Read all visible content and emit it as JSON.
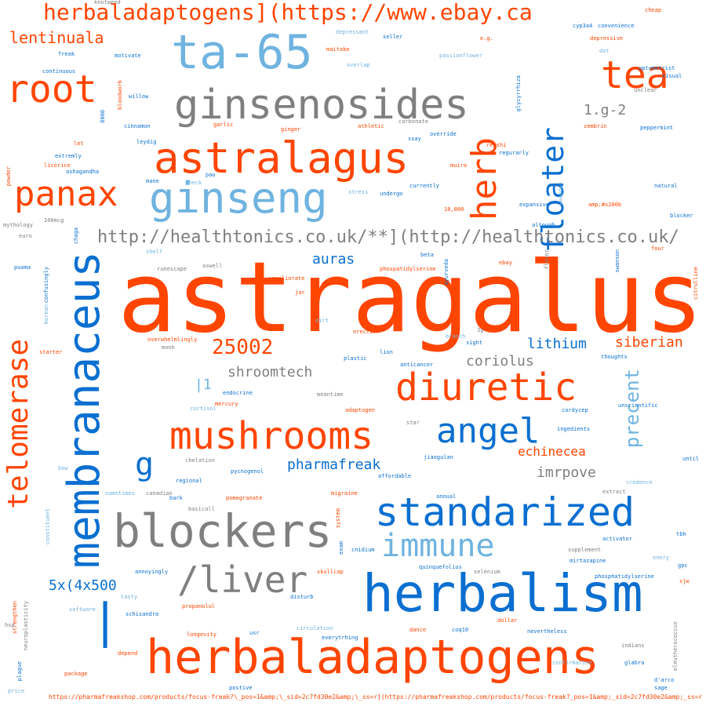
{
  "palette": {
    "orange": "#ff4500",
    "blue": "#0a6fd0",
    "lightblue": "#6fb3e0",
    "gray": "#7f7f7f"
  },
  "words": [
    {
      "text": "astragalus",
      "color": "orange"
    },
    {
      "text": "herbaladaptogens",
      "color": "orange"
    },
    {
      "text": "herbalism",
      "color": "blue"
    },
    {
      "text": "membranaceus",
      "color": "blue"
    },
    {
      "text": "ta-65",
      "color": "lightblue"
    },
    {
      "text": "ginsenosides",
      "color": "gray"
    },
    {
      "text": "root",
      "color": "orange"
    },
    {
      "text": "tea",
      "color": "orange"
    },
    {
      "text": "astralagus",
      "color": "orange"
    },
    {
      "text": "ginseng",
      "color": "lightblue"
    },
    {
      "text": "panax",
      "color": "orange"
    },
    {
      "text": "herb",
      "color": "orange"
    },
    {
      "text": "floater",
      "color": "blue"
    },
    {
      "text": "herbaladaptogens](https://www.ebay.ca",
      "color": "orange"
    },
    {
      "text": "lentinuala",
      "color": "orange"
    },
    {
      "text": "telomerase",
      "color": "orange"
    },
    {
      "text": "diuretic",
      "color": "orange"
    },
    {
      "text": "mushrooms",
      "color": "orange"
    },
    {
      "text": "standarized",
      "color": "blue"
    },
    {
      "text": "blockers",
      "color": "gray"
    },
    {
      "text": "immune",
      "color": "lightblue"
    },
    {
      "text": "angel",
      "color": "blue"
    },
    {
      "text": "/liver",
      "color": "gray"
    },
    {
      "text": "g",
      "color": "blue"
    },
    {
      "text": "|",
      "color": "blue"
    },
    {
      "text": "http://healthtonics.co.uk/**](http://healthtonics.co.uk/",
      "color": "gray"
    },
    {
      "text": "1.g-2",
      "color": "gray"
    },
    {
      "text": "25002",
      "color": "orange"
    },
    {
      "text": "shroomtech",
      "color": "gray"
    },
    {
      "text": "coriolus",
      "color": "gray"
    },
    {
      "text": "lithium",
      "color": "blue"
    },
    {
      "text": "siberian",
      "color": "orange"
    },
    {
      "text": "auras",
      "color": "blue"
    },
    {
      "text": "precent",
      "color": "lightblue"
    },
    {
      "text": "echinecea",
      "color": "orange"
    },
    {
      "text": "pharmafreak",
      "color": "blue"
    },
    {
      "text": "imrpove",
      "color": "gray"
    },
    {
      "text": "5x(4x500",
      "color": "blue"
    },
    {
      "text": "|1",
      "color": "lightblue"
    },
    {
      "text": "https://pharmafreakshop.com/products/focus-freak?\\_pos=1&amp;\\_sid=2c7fd30e2&amp;\\_ss=r](https://pharmafreakshop.com/products/focus-freak?_pos=1&amp;_sid=2c7fd30e2&amp;_ss=r",
      "color": "orange"
    },
    {
      "text": "depressant",
      "color": "lightblue"
    },
    {
      "text": "seller",
      "color": "blue"
    },
    {
      "text": "e.g.",
      "color": "orange"
    },
    {
      "text": "cheap",
      "color": "orange"
    },
    {
      "text": "cyp3a4",
      "color": "blue"
    },
    {
      "text": "convenience",
      "color": "blue"
    },
    {
      "text": "depressive",
      "color": "orange"
    },
    {
      "text": "optometrist",
      "color": "blue"
    },
    {
      "text": "visual",
      "color": "blue"
    },
    {
      "text": "freak",
      "color": "blue"
    },
    {
      "text": "motivate",
      "color": "blue"
    },
    {
      "text": "maitake",
      "color": "orange"
    },
    {
      "text": "passionflower",
      "color": "lightblue"
    },
    {
      "text": "dot",
      "color": "lightblue"
    },
    {
      "text": "continuous",
      "color": "blue"
    },
    {
      "text": "overlap",
      "color": "lightblue"
    },
    {
      "text": "bloodwork",
      "color": "orange"
    },
    {
      "text": "willow",
      "color": "blue"
    },
    {
      "text": "glycyrrhiza",
      "color": "blue"
    },
    {
      "text": "unclear",
      "color": "gray"
    },
    {
      "text": "8000",
      "color": "blue"
    },
    {
      "text": "cinnamon",
      "color": "blue"
    },
    {
      "text": "garlic",
      "color": "orange"
    },
    {
      "text": "ginger",
      "color": "orange"
    },
    {
      "text": "carbonate",
      "color": "gray"
    },
    {
      "text": "athletic",
      "color": "orange"
    },
    {
      "text": "zembrin",
      "color": "orange"
    },
    {
      "text": "peppermint",
      "color": "blue"
    },
    {
      "text": "leydig",
      "color": "blue"
    },
    {
      "text": "ssay",
      "color": "blue"
    },
    {
      "text": "override",
      "color": "blue"
    },
    {
      "text": "let",
      "color": "orange"
    },
    {
      "text": "reishi",
      "color": "orange"
    },
    {
      "text": "extremly",
      "color": "blue"
    },
    {
      "text": "regurarly",
      "color": "blue"
    },
    {
      "text": "licorice",
      "color": "orange"
    },
    {
      "text": "muira",
      "color": "orange"
    },
    {
      "text": "ashagandha",
      "color": "blue"
    },
    {
      "text": "powder",
      "color": "orange"
    },
    {
      "text": "pau",
      "color": "blue"
    },
    {
      "text": "mane",
      "color": "blue"
    },
    {
      "text": "check",
      "color": "lightblue"
    },
    {
      "text": "currently",
      "color": "blue"
    },
    {
      "text": "stress",
      "color": "lightblue"
    },
    {
      "text": "undergo",
      "color": "blue"
    },
    {
      "text": "natural",
      "color": "blue"
    },
    {
      "text": "weekday",
      "color": "lightblue"
    },
    {
      "text": "expansive",
      "color": "blue"
    },
    {
      "text": "amp;#x200b",
      "color": "orange"
    },
    {
      "text": "10,000",
      "color": "orange"
    },
    {
      "text": "blocker",
      "color": "blue"
    },
    {
      "text": "100mcg",
      "color": "gray"
    },
    {
      "text": "mythology",
      "color": "gray"
    },
    {
      "text": "chaga",
      "color": "blue"
    },
    {
      "text": "altough",
      "color": "blue"
    },
    {
      "text": "euro",
      "color": "gray"
    },
    {
      "text": "four",
      "color": "orange"
    },
    {
      "text": "shelf",
      "color": "lightblue"
    },
    {
      "text": "flavor",
      "color": "gray"
    },
    {
      "text": "swanson",
      "color": "blue"
    },
    {
      "text": "puama",
      "color": "blue"
    },
    {
      "text": "confusingly",
      "color": "blue"
    },
    {
      "text": "runescape",
      "color": "gray"
    },
    {
      "text": "aswell",
      "color": "gray"
    },
    {
      "text": "ammeliorate",
      "color": "orange"
    },
    {
      "text": "beta",
      "color": "blue"
    },
    {
      "text": "ebay",
      "color": "orange"
    },
    {
      "text": "phospatidylserine",
      "color": "orange"
    },
    {
      "text": "ayurveda",
      "color": "blue"
    },
    {
      "text": "citrulline",
      "color": "orange"
    },
    {
      "text": "jar",
      "color": "orange"
    },
    {
      "text": "korean",
      "color": "lightblue"
    },
    {
      "text": "dirt",
      "color": "lightblue"
    },
    {
      "text": "erection",
      "color": "orange"
    },
    {
      "text": "branch",
      "color": "lightblue"
    },
    {
      "text": "sight",
      "color": "blue"
    },
    {
      "text": "overwhelmlingly",
      "color": "orange"
    },
    {
      "text": "3g",
      "color": "gray"
    },
    {
      "text": "monk",
      "color": "gray"
    },
    {
      "text": "lion",
      "color": "blue"
    },
    {
      "text": "thoughts",
      "color": "blue"
    },
    {
      "text": "plastic",
      "color": "blue"
    },
    {
      "text": "anticancer",
      "color": "blue"
    },
    {
      "text": "starter",
      "color": "orange"
    },
    {
      "text": "endocrine",
      "color": "blue"
    },
    {
      "text": "meantime",
      "color": "gray"
    },
    {
      "text": "mercury",
      "color": "orange"
    },
    {
      "text": "unscientific",
      "color": "blue"
    },
    {
      "text": "cortisol",
      "color": "lightblue"
    },
    {
      "text": "adaptogen",
      "color": "orange"
    },
    {
      "text": "cordycep",
      "color": "blue"
    },
    {
      "text": "star",
      "color": "gray"
    },
    {
      "text": "ingedients",
      "color": "blue"
    },
    {
      "text": "jiaogulan",
      "color": "blue"
    },
    {
      "text": "chelation",
      "color": "gray"
    },
    {
      "text": "bow",
      "color": "lightblue"
    },
    {
      "text": "until",
      "color": "blue"
    },
    {
      "text": "affordable",
      "color": "blue"
    },
    {
      "text": "credence",
      "color": "lightblue"
    },
    {
      "text": "regional",
      "color": "blue"
    },
    {
      "text": "pycnogenol",
      "color": "blue"
    },
    {
      "text": "extract",
      "color": "gray"
    },
    {
      "text": "sometimes",
      "color": "lightblue"
    },
    {
      "text": "canadian",
      "color": "gray"
    },
    {
      "text": "bark",
      "color": "blue"
    },
    {
      "text": "migraine",
      "color": "orange"
    },
    {
      "text": "annual",
      "color": "blue"
    },
    {
      "text": "constituent",
      "color": "lightblue"
    },
    {
      "text": "basicall",
      "color": "gray"
    },
    {
      "text": "pomegranate",
      "color": "orange"
    },
    {
      "text": "system",
      "color": "orange"
    },
    {
      "text": "exam",
      "color": "blue"
    },
    {
      "text": "tbh",
      "color": "blue"
    },
    {
      "text": "activator",
      "color": "blue"
    },
    {
      "text": "cnidium",
      "color": "blue"
    },
    {
      "text": "supplement",
      "color": "gray"
    },
    {
      "text": "enery",
      "color": "lightblue"
    },
    {
      "text": "mirtazapine",
      "color": "blue"
    },
    {
      "text": "gpc",
      "color": "blue"
    },
    {
      "text": "annoyingly",
      "color": "blue"
    },
    {
      "text": "skullcap",
      "color": "orange"
    },
    {
      "text": "quinquefolius",
      "color": "blue"
    },
    {
      "text": "phosphatidylserine",
      "color": "blue"
    },
    {
      "text": "sjw",
      "color": "orange"
    },
    {
      "text": "selenium",
      "color": "gray"
    },
    {
      "text": "tasty",
      "color": "lightblue"
    },
    {
      "text": "disturb",
      "color": "blue"
    },
    {
      "text": "strengthen",
      "color": "orange"
    },
    {
      "text": "neuroplasticity",
      "color": "gray"
    },
    {
      "text": "software",
      "color": "lightblue"
    },
    {
      "text": "schisandra",
      "color": "blue"
    },
    {
      "text": "propanolol",
      "color": "orange"
    },
    {
      "text": "dollar",
      "color": "orange"
    },
    {
      "text": "hsp",
      "color": "gray"
    },
    {
      "text": "longevity",
      "color": "orange"
    },
    {
      "text": "usr",
      "color": "blue"
    },
    {
      "text": "circulation",
      "color": "lightblue"
    },
    {
      "text": "everytrhing",
      "color": "blue"
    },
    {
      "text": "dance",
      "color": "orange"
    },
    {
      "text": "coq10",
      "color": "blue"
    },
    {
      "text": "nevertheless",
      "color": "blue"
    },
    {
      "text": "indians",
      "color": "gray"
    },
    {
      "text": "eleutherococcus",
      "color": "gray"
    },
    {
      "text": "depend",
      "color": "orange"
    },
    {
      "text": "glabra",
      "color": "blue"
    },
    {
      "text": "plague",
      "color": "blue"
    },
    {
      "text": "package",
      "color": "orange"
    },
    {
      "text": "confirmation",
      "color": "lightblue"
    },
    {
      "text": "d'arco",
      "color": "blue"
    },
    {
      "text": "sage",
      "color": "blue"
    },
    {
      "text": "postive",
      "color": "blue"
    },
    {
      "text": "price",
      "color": "lightblue"
    },
    {
      "text": "knotweed",
      "color": "gray"
    }
  ]
}
